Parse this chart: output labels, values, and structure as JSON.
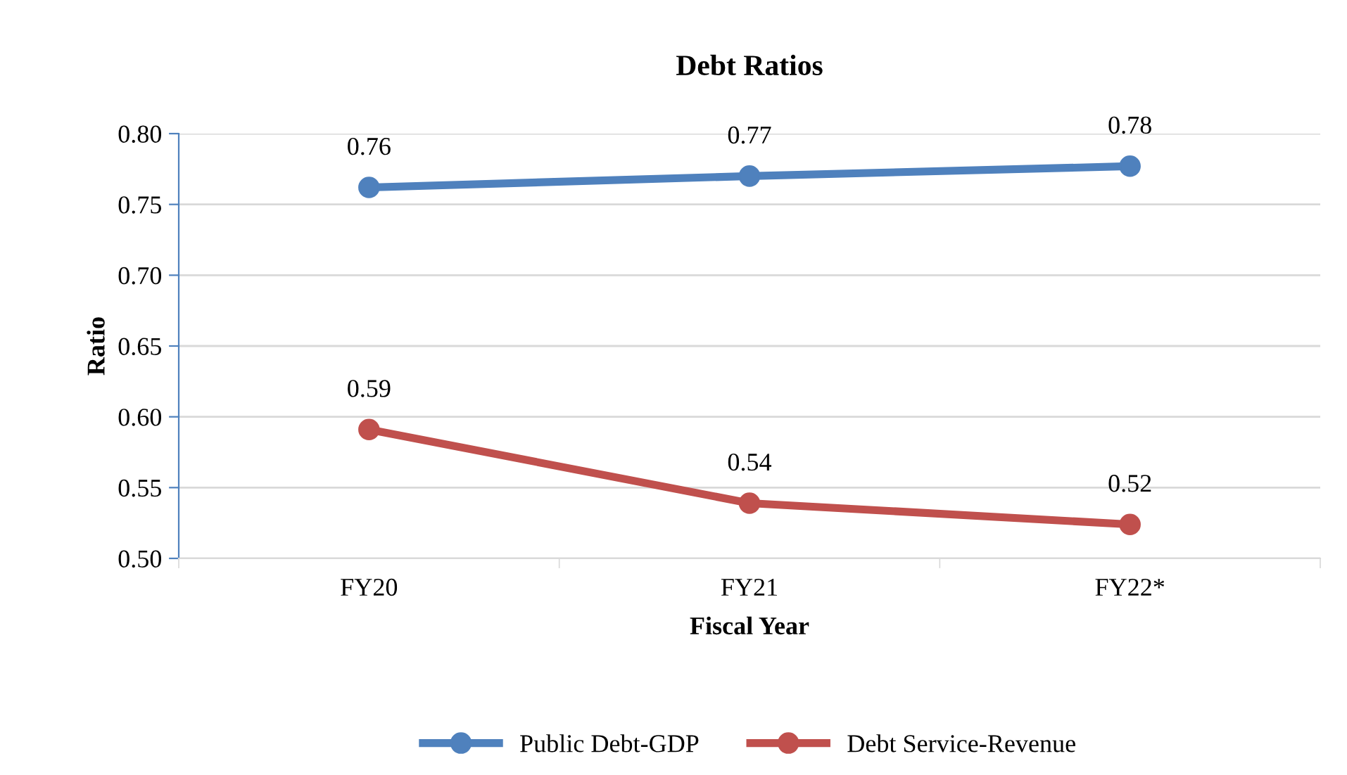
{
  "chart_data": {
    "type": "line",
    "title": "Debt Ratios",
    "xlabel": "Fiscal Year",
    "ylabel": "Ratio",
    "categories": [
      "FY20",
      "FY21",
      "FY22*"
    ],
    "series": [
      {
        "name": "Public Debt-GDP",
        "color": "#4f81bd",
        "values": [
          0.762,
          0.77,
          0.777
        ],
        "value_labels": [
          "0.76",
          "0.77",
          "0.78"
        ]
      },
      {
        "name": "Debt Service-Revenue",
        "color": "#c0504d",
        "values": [
          0.591,
          0.539,
          0.524
        ],
        "value_labels": [
          "0.59",
          "0.54",
          "0.52"
        ]
      }
    ],
    "ylim": [
      0.5,
      0.8
    ],
    "yticks": [
      {
        "value": 0.5,
        "label": "0.50"
      },
      {
        "value": 0.55,
        "label": "0.55"
      },
      {
        "value": 0.6,
        "label": "0.60"
      },
      {
        "value": 0.65,
        "label": "0.65"
      },
      {
        "value": 0.7,
        "label": "0.70"
      },
      {
        "value": 0.75,
        "label": "0.75"
      },
      {
        "value": 0.8,
        "label": "0.80"
      }
    ],
    "grid": "y",
    "legend": "bottom",
    "marker": "circle",
    "line_style": "solid"
  }
}
